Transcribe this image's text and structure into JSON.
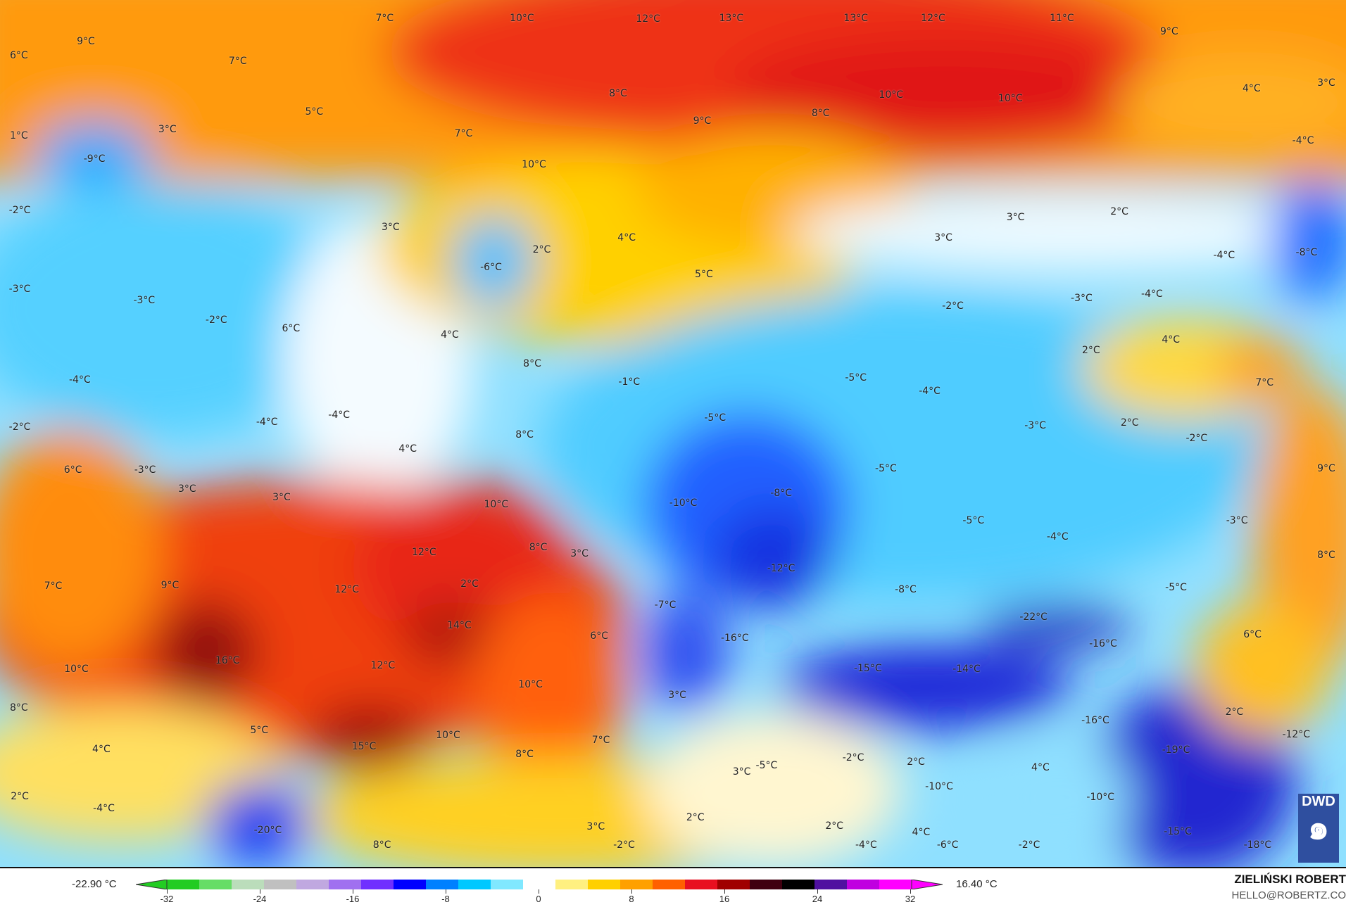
{
  "map": {
    "variable_unit": "°C",
    "labels": [
      "7°C",
      "10°C",
      "12°C",
      "13°C",
      "13°C",
      "12°C",
      "11°C",
      "9°C",
      "6°C",
      "7°C",
      "9°C",
      "4°C",
      "3°C",
      "8°C",
      "10°C",
      "10°C",
      "5°C",
      "3°C",
      "9°C",
      "8°C",
      "7°C",
      "1°C",
      "-9°C",
      "10°C",
      "-4°C",
      "-2°C",
      "3°C",
      "2°C",
      "4°C",
      "3°C",
      "3°C",
      "2°C",
      "-6°C",
      "5°C",
      "-4°C",
      "-8°C",
      "-3°C",
      "-3°C",
      "-2°C",
      "6°C",
      "4°C",
      "-2°C",
      "-3°C",
      "-4°C",
      "4°C",
      "2°C",
      "-1°C",
      "-4°C",
      "8°C",
      "-5°C",
      "-4°C",
      "7°C",
      "-2°C",
      "-4°C",
      "-4°C",
      "-5°C",
      "-3°C",
      "2°C",
      "-2°C",
      "4°C",
      "8°C",
      "6°C",
      "-3°C",
      "-5°C",
      "9°C",
      "3°C",
      "3°C",
      "10°C",
      "-10°C",
      "-8°C",
      "-5°C",
      "-3°C",
      "-4°C",
      "12°C",
      "8°C",
      "3°C",
      "-12°C",
      "8°C",
      "7°C",
      "9°C",
      "12°C",
      "2°C",
      "-8°C",
      "-5°C",
      "-7°C",
      "14°C",
      "-22°C",
      "6°C",
      "-16°C",
      "-16°C",
      "6°C",
      "16°C",
      "10°C",
      "12°C",
      "10°C",
      "-15°C",
      "-14°C",
      "3°C",
      "8°C",
      "2°C",
      "5°C",
      "-16°C",
      "10°C",
      "7°C",
      "-12°C",
      "4°C",
      "15°C",
      "8°C",
      "-19°C",
      "-2°C",
      "2°C",
      "-5°C",
      "3°C",
      "4°C",
      "-10°C",
      "-10°C",
      "2°C",
      "-4°C",
      "-20°C",
      "3°C",
      "-2°C",
      "2°C",
      "2°C",
      "4°C",
      "-4°C",
      "-6°C",
      "-2°C",
      "-15°C",
      "-18°C",
      "8°C"
    ],
    "logo": "DWD"
  },
  "legend": {
    "min_label": "-22.90 °C",
    "max_label": "16.40 °C",
    "ticks": [
      "-32",
      "-24",
      "-16",
      "-8",
      "0",
      "8",
      "16",
      "24",
      "32"
    ],
    "colors": [
      "#22cc22",
      "#66dd66",
      "#bbddbb",
      "#c0c0c0",
      "#c0a8e0",
      "#a070f0",
      "#7030ff",
      "#0000ff",
      "#0080ff",
      "#00c8ff",
      "#80e8ff",
      "#ffffff",
      "#fff080",
      "#ffd000",
      "#ffa000",
      "#ff6000",
      "#e81020",
      "#a00000",
      "#400010",
      "#000000",
      "#5010a0",
      "#c000e0",
      "#ff00ff"
    ]
  },
  "credit": {
    "author": "ZIELIŃSKI ROBERT",
    "email": "HELLO@ROBERTZ.CO"
  }
}
